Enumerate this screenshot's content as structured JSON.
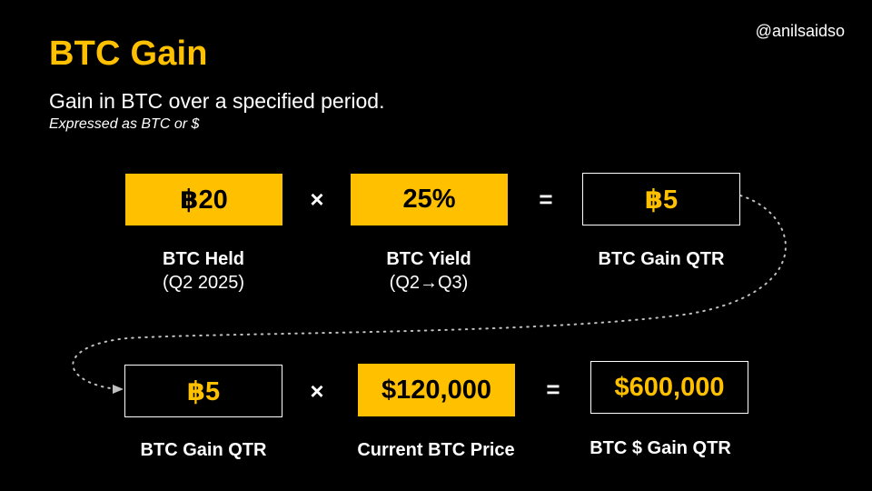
{
  "handle": "@anilsaidso",
  "title": "BTC Gain",
  "subtitle": "Gain in BTC over a specified period.",
  "subnote": "Expressed as BTC or $",
  "row1": {
    "box1": "฿20",
    "op1": "×",
    "box2": "25%",
    "op2": "=",
    "box3": "฿5",
    "label1_main": "BTC Held",
    "label1_sub": "(Q2 2025)",
    "label2_main": "BTC Yield",
    "label2_sub": "(Q2→Q3)",
    "label3_main": "BTC Gain QTR"
  },
  "row2": {
    "box1": "฿5",
    "op1": "×",
    "box2": "$120,000",
    "op2": "=",
    "box3": "$600,000",
    "label1_main": "BTC Gain QTR",
    "label2_main": "Current BTC Price",
    "label3_main": "BTC $ Gain QTR"
  },
  "colors": {
    "accent": "#ffc000",
    "background": "#000000",
    "text": "#ffffff"
  }
}
